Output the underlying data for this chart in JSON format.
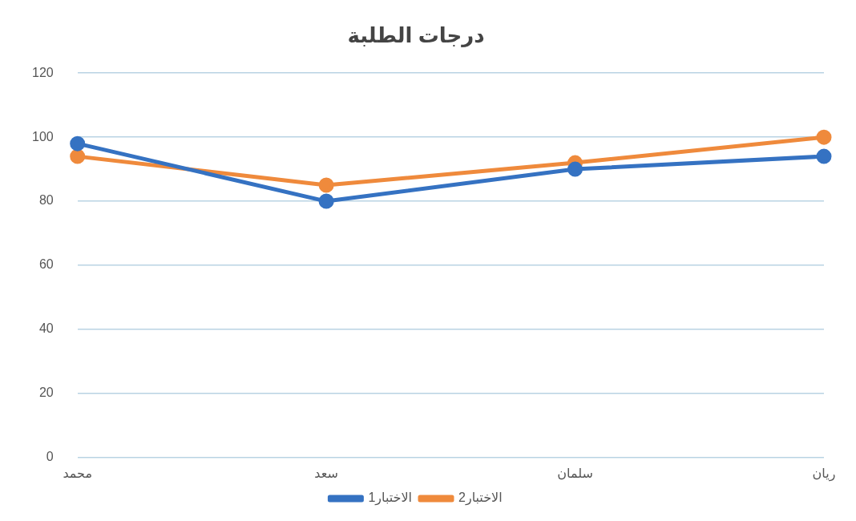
{
  "chart_data": {
    "type": "line",
    "title": "درجات الطلبة",
    "categories": [
      "محمد",
      "سعد",
      "سلمان",
      "ريان"
    ],
    "series": [
      {
        "name": "الاختبار1",
        "color": "#3572c2",
        "values": [
          98,
          80,
          90,
          94
        ]
      },
      {
        "name": "الاختبار2",
        "color": "#ef8a3c",
        "values": [
          94,
          85,
          92,
          100
        ]
      }
    ],
    "ylim": [
      0,
      120
    ],
    "yticks": [
      0,
      20,
      40,
      60,
      80,
      100,
      120
    ],
    "grid": "y",
    "legend": "bottom",
    "marker": "circle",
    "line_style": "solid"
  }
}
